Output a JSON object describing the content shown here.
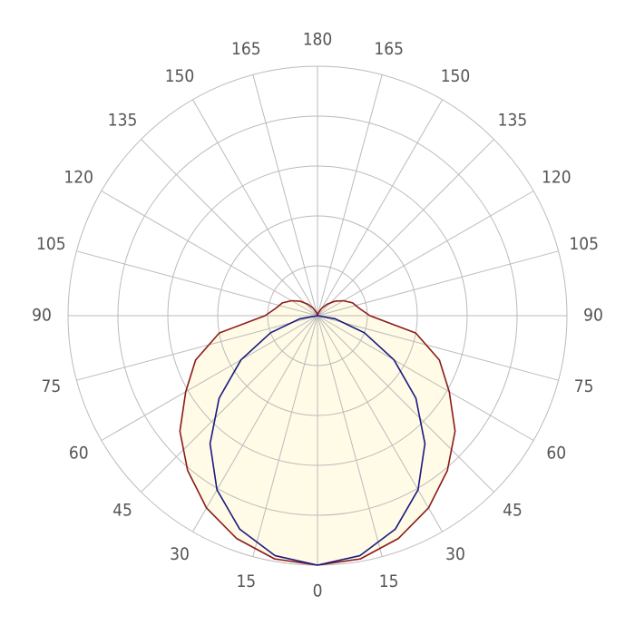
{
  "chart_data": {
    "type": "polar",
    "angle_ticks": [
      0,
      15,
      30,
      45,
      60,
      75,
      90,
      105,
      120,
      135,
      150,
      165,
      180
    ],
    "rlim": [
      0,
      100
    ],
    "rticks": [
      20,
      40,
      60,
      80,
      100
    ],
    "grid": true,
    "mirrored": true,
    "x": [
      0,
      10,
      20,
      30,
      40,
      50,
      60,
      70,
      80,
      90,
      100,
      110,
      120,
      130,
      140,
      150,
      160,
      170,
      180
    ],
    "series": [
      {
        "color": "#8b1a1a",
        "fill": "#fffbe6",
        "values": [
          100,
          99,
          95,
          89,
          81,
          72,
          61,
          52,
          40,
          21,
          17,
          15,
          12,
          9,
          6,
          3.5,
          1.5,
          0.5,
          0
        ]
      },
      {
        "color": "#1a1a80",
        "values": [
          100,
          97.7,
          91.1,
          80.6,
          67,
          51.5,
          35.4,
          20,
          7.2,
          0,
          null,
          null,
          null,
          null,
          null,
          null,
          null,
          null,
          null
        ]
      }
    ]
  }
}
